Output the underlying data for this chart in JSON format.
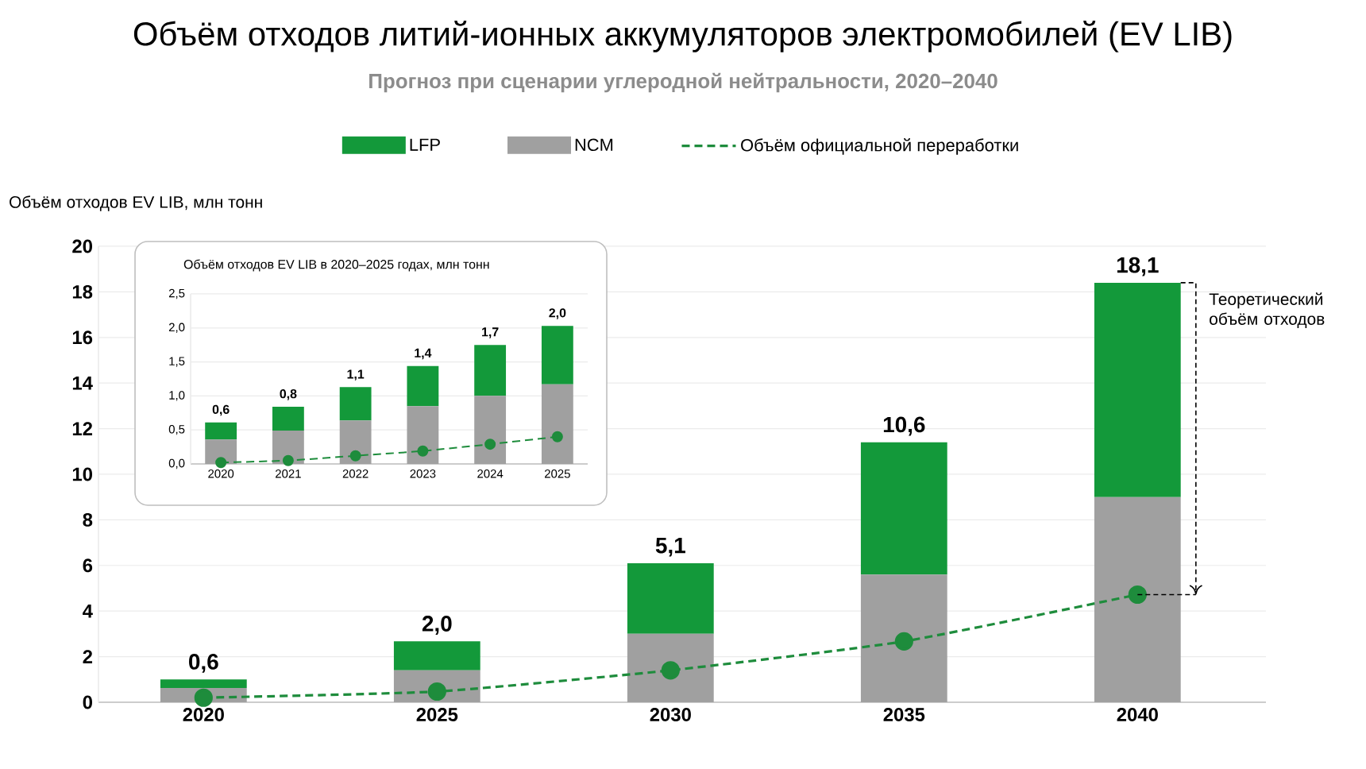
{
  "chart_data": [
    {
      "type": "bar",
      "stacked": true,
      "title": "Объём отходов литий-ионных аккумуляторов электромобилей (EV LIB)",
      "subtitle": "Прогноз при сценарии углеродной нейтральности, 2020–2040",
      "ylabel": "Объём отходов EV LIB, млн тонн",
      "categories": [
        "2020",
        "2025",
        "2030",
        "2035",
        "2040"
      ],
      "series": [
        {
          "name": "NCM",
          "color": "#a0a0a0",
          "values": [
            0.63,
            1.4,
            3.0,
            5.6,
            9.0
          ]
        },
        {
          "name": "LFP",
          "color": "#13993a",
          "values": [
            0.37,
            1.27,
            3.1,
            5.8,
            9.4
          ]
        },
        {
          "name": "Объём официальной переработки",
          "type": "line",
          "color": "#1e8c3c",
          "values": [
            0.2,
            0.47,
            1.4,
            2.67,
            4.72
          ]
        }
      ],
      "ylim": [
        0,
        20
      ],
      "yticks": [
        0,
        2,
        4,
        6,
        8,
        10,
        12,
        14,
        16,
        18,
        20
      ],
      "grid": "y",
      "legend": "top",
      "marker": "circle",
      "line_style": "dashed",
      "annotations": [
        "Теоретический объём отходов",
        {
          "text": "0,6",
          "x": "2020",
          "y": 1.0
        },
        {
          "text": "2,0",
          "x": "2025",
          "y": 2.67
        },
        {
          "text": "5,1",
          "x": "2030",
          "y": 6.1
        },
        {
          "text": "10,6",
          "x": "2035",
          "y": 11.4
        },
        {
          "text": "18,1",
          "x": "2040",
          "y": 18.4
        }
      ]
    },
    {
      "type": "bar",
      "stacked": true,
      "title": "Объём отходов EV LIB в 2020–2025 годах, млн тонн",
      "categories": [
        "2020",
        "2021",
        "2022",
        "2023",
        "2024",
        "2025"
      ],
      "series": [
        {
          "color": "#a0a0a0",
          "values": [
            0.36,
            0.49,
            0.64,
            0.85,
            1.0,
            1.17
          ]
        },
        {
          "color": "#13993a",
          "values": [
            0.25,
            0.35,
            0.49,
            0.59,
            0.75,
            0.86
          ]
        },
        {
          "type": "line",
          "color": "#1e8c3c",
          "values": [
            0.02,
            0.05,
            0.12,
            0.19,
            0.29,
            0.4
          ]
        }
      ],
      "totals": [
        "0,6",
        "0,8",
        "1,1",
        "1,4",
        "1,7",
        "2,0"
      ],
      "ylim": [
        0,
        2.5
      ],
      "yticks": [
        {
          "value": 0,
          "label": "0,0"
        },
        {
          "value": 0.5,
          "label": "0,5"
        },
        {
          "value": 1,
          "label": "1,0"
        },
        {
          "value": 1.5,
          "label": "1,5"
        },
        {
          "value": 2,
          "label": "2,0"
        },
        {
          "value": 2.5,
          "label": "2,5"
        }
      ],
      "grid": "y",
      "marker": "circle",
      "line_style": "dashed"
    }
  ]
}
